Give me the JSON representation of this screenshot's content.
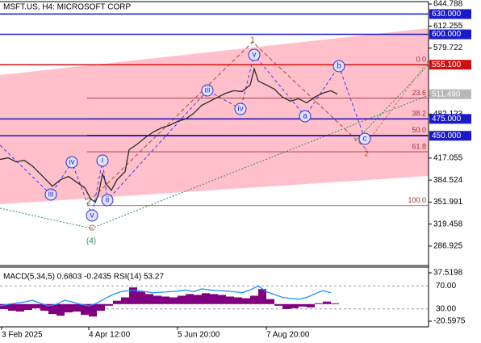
{
  "chart_data": [
    {
      "type": "line",
      "title": "MSFT.US, H4:  MICROSOFT CORP",
      "color": "#2a2a2a",
      "x": [
        0,
        10,
        20,
        30,
        40,
        50,
        60,
        65,
        75,
        85,
        95,
        105,
        112,
        118,
        122,
        127,
        132,
        138,
        145,
        155,
        160,
        170,
        180,
        190,
        200,
        210,
        220,
        230,
        240,
        250,
        260,
        270,
        280,
        290,
        300,
        310,
        315,
        320,
        330,
        340,
        350,
        360,
        370,
        380,
        390,
        400,
        410,
        418
      ],
      "values": [
        415.0,
        417.4,
        411.4,
        413.8,
        405.4,
        393.5,
        381.5,
        375.5,
        385.1,
        389.9,
        381.5,
        373.1,
        357.5,
        351.5,
        363.5,
        393.5,
        377.9,
        369.5,
        385.1,
        397.0,
        429.4,
        437.7,
        447.3,
        455.7,
        461.7,
        465.3,
        471.3,
        474.9,
        483.2,
        495.2,
        501.2,
        507.2,
        513.1,
        516.7,
        515.5,
        525.1,
        549.1,
        531.1,
        525.1,
        519.1,
        507.2,
        501.2,
        504.8,
        498.8,
        507.2,
        513.1,
        516.7,
        511.49
      ],
      "xlim": [
        0,
        530
      ],
      "ylim": [
        258.2,
        648.4
      ],
      "yticks": [
        644.788,
        612.255,
        579.722,
        482.123,
        417.055,
        384.524,
        351.991,
        319.458,
        286.925
      ],
      "xticks": [
        {
          "value": 2,
          "label": "3 Feb 2025"
        },
        {
          "value": 110,
          "label": "4 Apr 12:00"
        },
        {
          "value": 220,
          "label": "5 Jun 20:00"
        },
        {
          "value": 330,
          "label": "7 Aug 20:00"
        }
      ],
      "levels": [
        {
          "value": 630,
          "label": "630.000",
          "color": "#1a1ac8"
        },
        {
          "value": 600,
          "label": "600.000",
          "color": "#1a1ac8"
        },
        {
          "value": 555.1,
          "label": "555.100",
          "color": "#d01010"
        },
        {
          "value": 475,
          "label": "475.000",
          "color": "#1a1ac8"
        },
        {
          "value": 450,
          "label": "450.000",
          "color": "#1a1ac8"
        }
      ],
      "current": {
        "value": 511.49,
        "label": "511.490"
      },
      "fibonacci": [
        {
          "value": 555.1,
          "label": "0.0"
        },
        {
          "value": 505.9,
          "label": "23.6"
        },
        {
          "value": 475.5,
          "label": "38.2"
        },
        {
          "value": 451.0,
          "label": "50.0"
        },
        {
          "value": 426.4,
          "label": "61.8"
        },
        {
          "value": 346.8,
          "label": "100.0"
        }
      ],
      "annotations": [
        "1",
        "v",
        "iii",
        "iv",
        "b",
        "a",
        "c",
        "2",
        "i",
        "iv",
        "iii",
        "ii",
        "2",
        "v",
        "C",
        "(4)"
      ]
    },
    {
      "type": "macd",
      "title": "MACD(5,34,5) 0.6803 -0.2435 RSI(14) 53.27",
      "x": [
        0,
        10,
        20,
        30,
        40,
        50,
        60,
        70,
        80,
        90,
        100,
        110,
        120,
        130,
        140,
        150,
        160,
        170,
        180,
        190,
        200,
        210,
        220,
        230,
        240,
        250,
        260,
        270,
        280,
        290,
        300,
        310,
        320,
        330,
        340,
        350,
        360,
        370,
        380,
        390,
        400,
        410
      ],
      "series": [
        {
          "color": "#800080",
          "values": [
            -6,
            -8,
            -9,
            -7,
            -5,
            -8,
            -12,
            -14,
            -10,
            -9,
            -13,
            -15,
            -8,
            -2,
            4,
            8,
            20,
            15,
            12,
            10,
            9,
            8,
            10,
            12,
            11,
            13,
            12,
            11,
            9,
            8,
            7,
            10,
            18,
            6,
            -2,
            -6,
            -5,
            -3,
            -4,
            1,
            3,
            1
          ]
        },
        {
          "color": "#1e90ff",
          "axis": "y2",
          "values": [
            35,
            38,
            40,
            42,
            45,
            40,
            35,
            38,
            45,
            42,
            38,
            35,
            40,
            48,
            55,
            60,
            62,
            62,
            60,
            58,
            59,
            60,
            61,
            63,
            60,
            65,
            63,
            62,
            61,
            60,
            58,
            63,
            70,
            60,
            55,
            50,
            48,
            47,
            50,
            56,
            62,
            58
          ]
        }
      ],
      "xlim": [
        0,
        530
      ],
      "ylim": [
        -26.4,
        42.4
      ],
      "yticks": [
        37.5198,
        -20.5975
      ],
      "y2lim": [
        0,
        100
      ],
      "y2ticks": [
        {
          "value": 70,
          "label": "70.00"
        },
        {
          "value": 30,
          "label": "30.00"
        }
      ]
    }
  ]
}
